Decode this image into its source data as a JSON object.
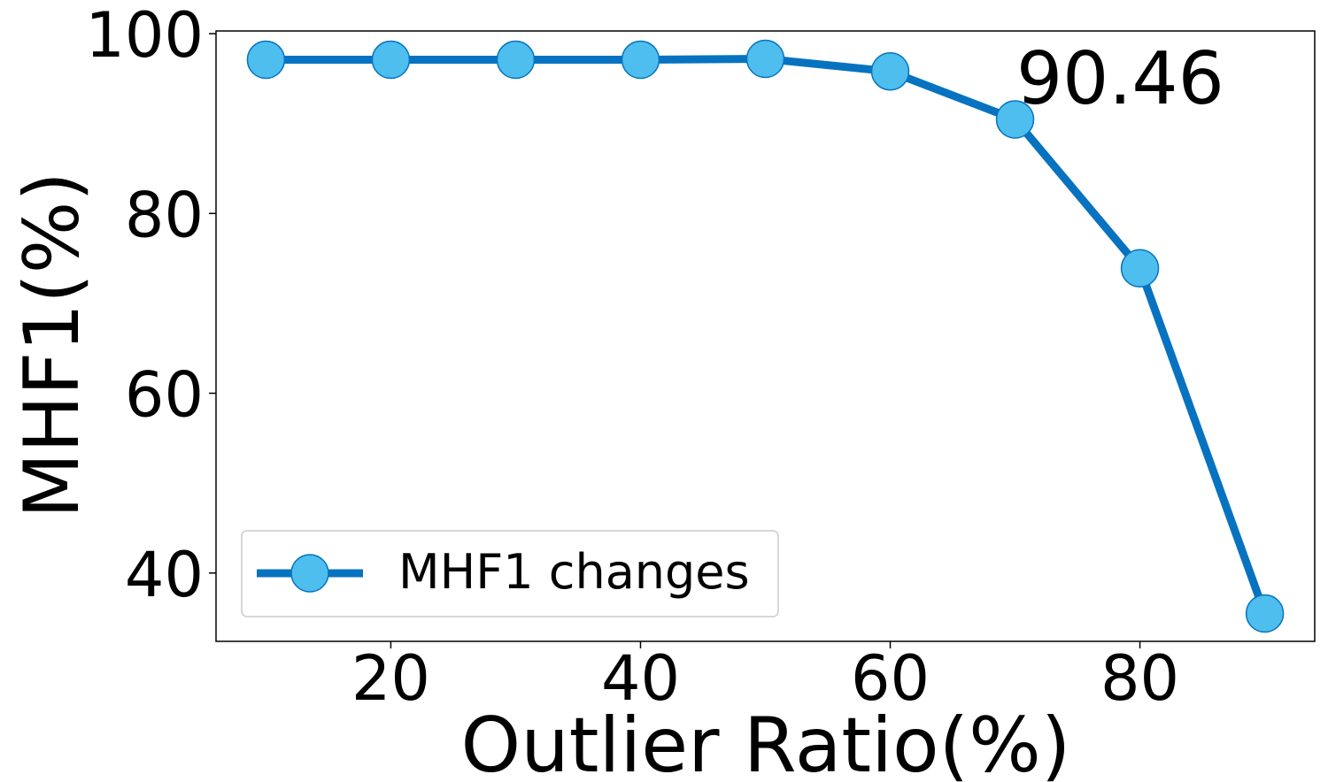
{
  "chart_data": {
    "type": "line",
    "x_label": "Outlier Ratio(%)",
    "y_label": "MHF1(%)",
    "annotation": "90.46",
    "x": [
      10,
      20,
      30,
      40,
      50,
      60,
      70,
      80,
      90
    ],
    "series": [
      {
        "name": "MHF1 changes",
        "color": "#0773c0",
        "marker_color": "#4dbeee",
        "values": [
          97.1,
          97.1,
          97.1,
          97.1,
          97.2,
          95.8,
          90.46,
          73.9,
          35.5
        ]
      }
    ],
    "xlim": [
      6,
      94
    ],
    "ylim": [
      32.4,
      100.3
    ],
    "xticks": [
      20,
      40,
      60,
      80
    ],
    "yticks": [
      40,
      60,
      80,
      100
    ],
    "grid": false,
    "legend": "lower left"
  }
}
